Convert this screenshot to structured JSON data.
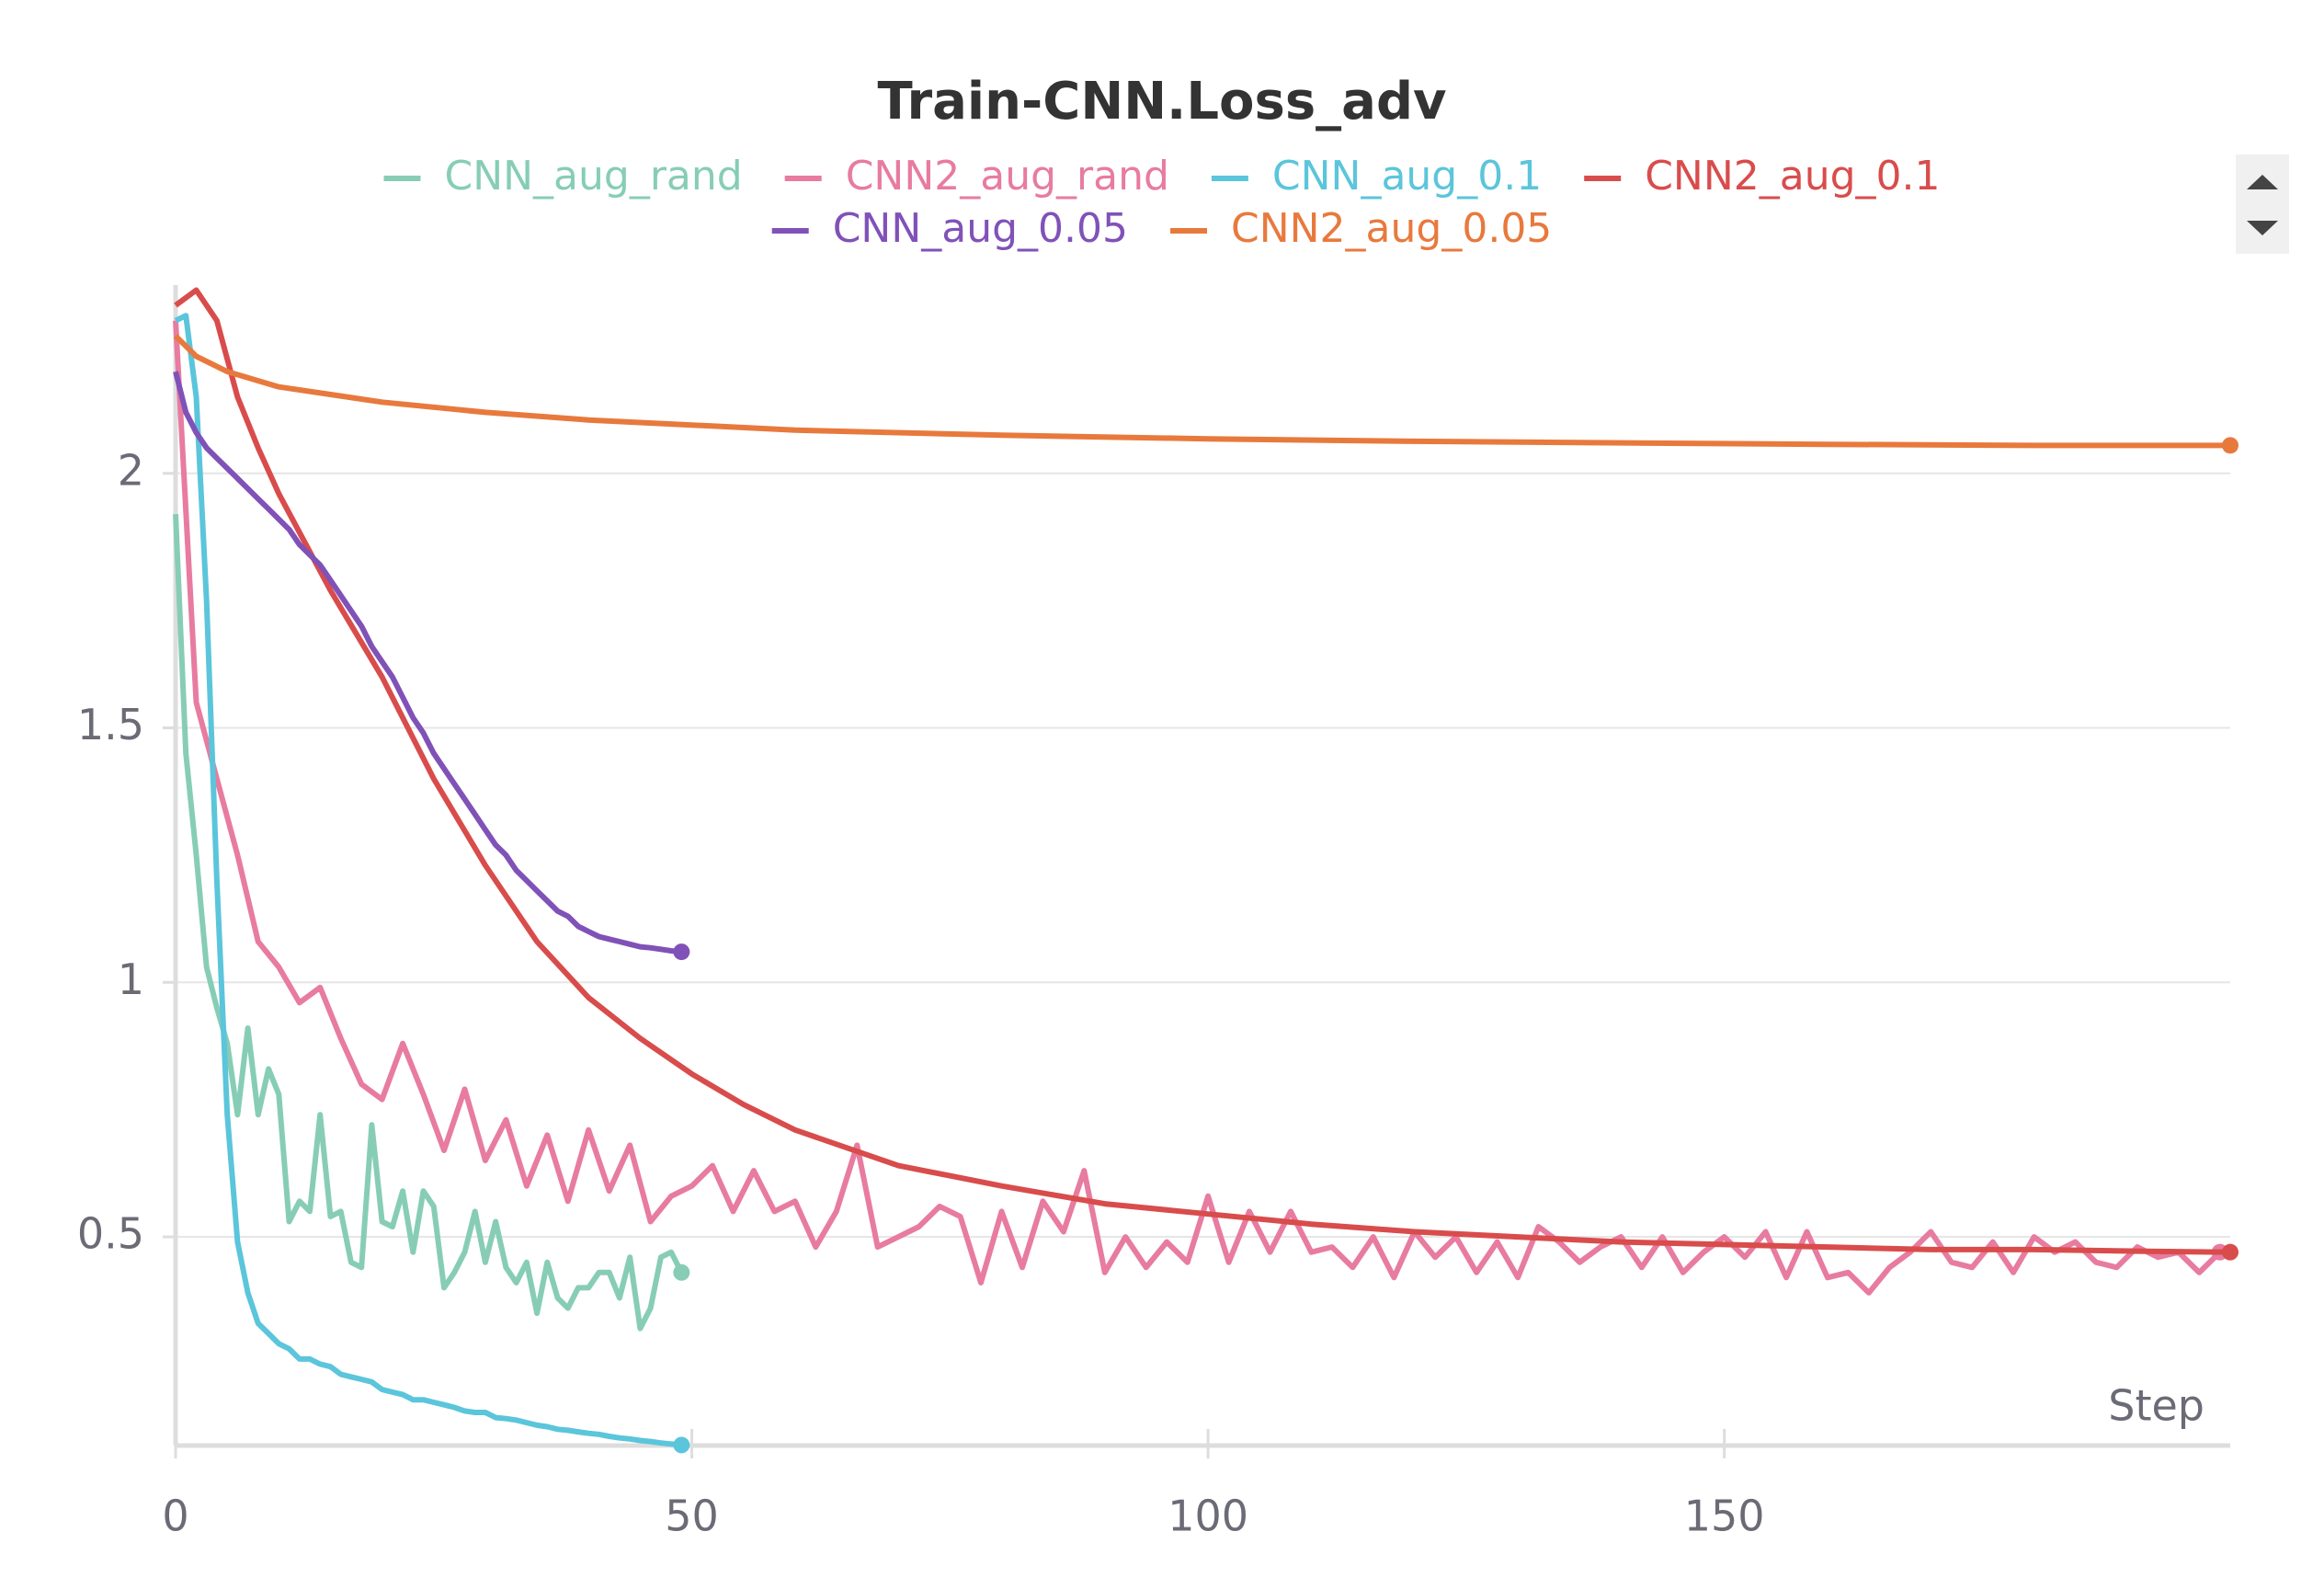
{
  "chart_data": {
    "type": "line",
    "title": "Train-CNN.Loss_adv",
    "x_label": "Step",
    "xlim": [
      0,
      199
    ],
    "xticks": [
      0,
      50,
      100,
      150
    ],
    "ylim": [
      0.09,
      2.37
    ],
    "yticks": [
      0.5,
      1,
      1.5,
      2
    ],
    "grid": true,
    "series": [
      {
        "name": "CNN_aug_rand",
        "color": "#87cdb6",
        "x": [
          0,
          1,
          2,
          3,
          4,
          5,
          6,
          7,
          8,
          9,
          10,
          11,
          12,
          13,
          14,
          15,
          16,
          17,
          18,
          19,
          20,
          21,
          22,
          23,
          24,
          25,
          26,
          27,
          28,
          29,
          30,
          31,
          32,
          33,
          34,
          35,
          36,
          37,
          38,
          39,
          40,
          41,
          42,
          43,
          44,
          45,
          46,
          47,
          48,
          49
        ],
        "values": [
          1.92,
          1.45,
          1.25,
          1.03,
          0.95,
          0.88,
          0.74,
          0.91,
          0.74,
          0.83,
          0.78,
          0.53,
          0.57,
          0.55,
          0.74,
          0.54,
          0.55,
          0.45,
          0.44,
          0.72,
          0.53,
          0.52,
          0.59,
          0.47,
          0.59,
          0.56,
          0.4,
          0.43,
          0.47,
          0.55,
          0.45,
          0.53,
          0.44,
          0.41,
          0.45,
          0.35,
          0.45,
          0.38,
          0.36,
          0.4,
          0.4,
          0.43,
          0.43,
          0.38,
          0.46,
          0.32,
          0.36,
          0.46,
          0.47,
          0.43
        ]
      },
      {
        "name": "CNN2_aug_rand",
        "color": "#e87ba0",
        "x": [
          0,
          2,
          4,
          6,
          8,
          10,
          12,
          14,
          16,
          18,
          20,
          22,
          24,
          26,
          28,
          30,
          32,
          34,
          36,
          38,
          40,
          42,
          44,
          46,
          48,
          50,
          52,
          54,
          56,
          58,
          60,
          62,
          64,
          66,
          68,
          70,
          72,
          74,
          76,
          78,
          80,
          82,
          84,
          86,
          88,
          90,
          92,
          94,
          96,
          98,
          100,
          102,
          104,
          106,
          108,
          110,
          112,
          114,
          116,
          118,
          120,
          122,
          124,
          126,
          128,
          130,
          132,
          134,
          136,
          138,
          140,
          142,
          144,
          146,
          148,
          150,
          152,
          154,
          156,
          158,
          160,
          162,
          164,
          166,
          168,
          170,
          172,
          174,
          176,
          178,
          180,
          182,
          184,
          186,
          188,
          190,
          192,
          194,
          196,
          198
        ],
        "values": [
          2.3,
          1.55,
          1.4,
          1.25,
          1.08,
          1.03,
          0.96,
          0.99,
          0.89,
          0.8,
          0.77,
          0.88,
          0.78,
          0.67,
          0.79,
          0.65,
          0.73,
          0.6,
          0.7,
          0.57,
          0.71,
          0.59,
          0.68,
          0.53,
          0.58,
          0.6,
          0.64,
          0.55,
          0.63,
          0.55,
          0.57,
          0.48,
          0.55,
          0.68,
          0.48,
          0.5,
          0.52,
          0.56,
          0.54,
          0.41,
          0.55,
          0.44,
          0.57,
          0.51,
          0.63,
          0.43,
          0.5,
          0.44,
          0.49,
          0.45,
          0.58,
          0.45,
          0.55,
          0.47,
          0.55,
          0.47,
          0.48,
          0.44,
          0.5,
          0.42,
          0.51,
          0.46,
          0.5,
          0.43,
          0.49,
          0.42,
          0.52,
          0.49,
          0.45,
          0.48,
          0.5,
          0.44,
          0.5,
          0.43,
          0.47,
          0.5,
          0.46,
          0.51,
          0.42,
          0.51,
          0.42,
          0.43,
          0.39,
          0.44,
          0.47,
          0.51,
          0.45,
          0.44,
          0.49,
          0.43,
          0.5,
          0.47,
          0.49,
          0.45,
          0.44,
          0.48,
          0.46,
          0.47,
          0.43,
          0.47
        ]
      },
      {
        "name": "CNN_aug_0.1",
        "color": "#5bc5db",
        "x": [
          0,
          1,
          2,
          3,
          4,
          5,
          6,
          7,
          8,
          9,
          10,
          11,
          12,
          13,
          14,
          15,
          16,
          17,
          18,
          19,
          20,
          21,
          22,
          23,
          24,
          25,
          26,
          27,
          28,
          29,
          30,
          31,
          32,
          33,
          34,
          35,
          36,
          37,
          38,
          39,
          40,
          41,
          42,
          43,
          44,
          45,
          46,
          47,
          48,
          49
        ],
        "values": [
          2.3,
          2.31,
          2.15,
          1.75,
          1.2,
          0.74,
          0.49,
          0.39,
          0.33,
          0.31,
          0.29,
          0.28,
          0.26,
          0.26,
          0.25,
          0.245,
          0.23,
          0.225,
          0.22,
          0.215,
          0.2,
          0.195,
          0.19,
          0.18,
          0.18,
          0.175,
          0.17,
          0.165,
          0.158,
          0.155,
          0.155,
          0.145,
          0.143,
          0.14,
          0.135,
          0.13,
          0.127,
          0.122,
          0.12,
          0.117,
          0.114,
          0.112,
          0.108,
          0.105,
          0.103,
          0.1,
          0.098,
          0.095,
          0.093,
          0.091
        ]
      },
      {
        "name": "CNN2_aug_0.1",
        "color": "#d94c4c",
        "x": [
          0,
          2,
          4,
          6,
          8,
          10,
          15,
          20,
          25,
          30,
          35,
          40,
          45,
          50,
          55,
          60,
          70,
          80,
          90,
          100,
          110,
          120,
          130,
          140,
          150,
          160,
          170,
          180,
          190,
          199
        ],
        "values": [
          2.33,
          2.36,
          2.3,
          2.15,
          2.05,
          1.96,
          1.77,
          1.6,
          1.4,
          1.23,
          1.08,
          0.97,
          0.89,
          0.82,
          0.76,
          0.71,
          0.64,
          0.6,
          0.565,
          0.545,
          0.525,
          0.51,
          0.5,
          0.49,
          0.485,
          0.48,
          0.475,
          0.475,
          0.472,
          0.47
        ]
      },
      {
        "name": "CNN_aug_0.05",
        "color": "#8052b8",
        "x": [
          0,
          1,
          2,
          3,
          4,
          5,
          6,
          7,
          8,
          9,
          10,
          11,
          12,
          13,
          14,
          15,
          16,
          17,
          18,
          19,
          20,
          21,
          22,
          23,
          24,
          25,
          26,
          27,
          28,
          29,
          30,
          31,
          32,
          33,
          34,
          35,
          36,
          37,
          38,
          39,
          40,
          41,
          42,
          43,
          44,
          45,
          46,
          47,
          48,
          49
        ],
        "values": [
          2.2,
          2.12,
          2.08,
          2.05,
          2.03,
          2.01,
          1.99,
          1.97,
          1.95,
          1.93,
          1.91,
          1.89,
          1.86,
          1.84,
          1.82,
          1.79,
          1.76,
          1.73,
          1.7,
          1.66,
          1.63,
          1.6,
          1.56,
          1.52,
          1.49,
          1.45,
          1.42,
          1.39,
          1.36,
          1.33,
          1.3,
          1.27,
          1.25,
          1.22,
          1.2,
          1.18,
          1.16,
          1.14,
          1.13,
          1.11,
          1.1,
          1.09,
          1.085,
          1.08,
          1.075,
          1.07,
          1.068,
          1.065,
          1.062,
          1.06
        ]
      },
      {
        "name": "CNN2_aug_0.05",
        "color": "#e8793d",
        "x": [
          0,
          2,
          5,
          10,
          15,
          20,
          30,
          40,
          50,
          60,
          80,
          100,
          120,
          140,
          160,
          180,
          199
        ],
        "values": [
          2.27,
          2.23,
          2.2,
          2.17,
          2.155,
          2.14,
          2.12,
          2.105,
          2.095,
          2.085,
          2.075,
          2.068,
          2.063,
          2.06,
          2.057,
          2.055,
          2.055
        ]
      }
    ]
  }
}
